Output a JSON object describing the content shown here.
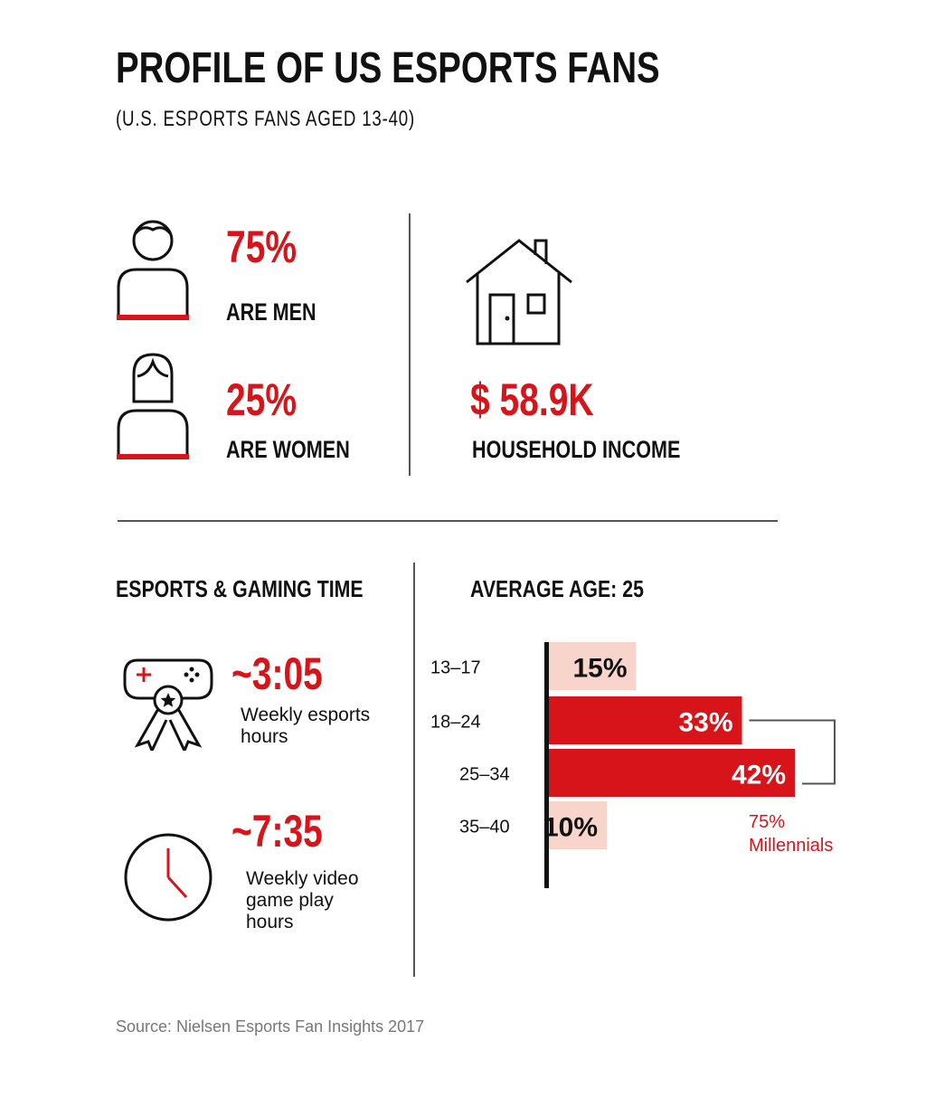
{
  "title": "PROFILE OF US ESPORTS FANS",
  "subtitle": "(U.S. ESPORTS FANS AGED 13-40)",
  "gender": {
    "men": {
      "value": "75%",
      "label": "ARE MEN"
    },
    "women": {
      "value": "25%",
      "label": "ARE WOMEN"
    }
  },
  "income": {
    "value": "$ 58.9K",
    "label": "HOUSEHOLD INCOME"
  },
  "gaming_time": {
    "heading": "ESPORTS & GAMING TIME",
    "esports": {
      "value": "~3:05",
      "label": "Weekly esports hours"
    },
    "video": {
      "value": "~7:35",
      "label": "Weekly video game play hours"
    }
  },
  "age": {
    "heading": "AVERAGE AGE: 25",
    "millennials_value": "75%",
    "millennials_label": "Millennials"
  },
  "colors": {
    "accent": "#d7141a",
    "light": "#f7d5cb",
    "text": "#111111"
  },
  "chart_data": {
    "type": "bar",
    "orientation": "horizontal",
    "categories": [
      "13–17",
      "18–24",
      "25–34",
      "35–40"
    ],
    "values": [
      15,
      33,
      42,
      10
    ],
    "labels": [
      "15%",
      "33%",
      "42%",
      "10%"
    ],
    "highlighted": [
      false,
      true,
      true,
      false
    ],
    "title": "AVERAGE AGE: 25",
    "xlabel": "",
    "ylabel": "",
    "annotation": "75% Millennials"
  },
  "source": "Source: Nielsen Esports Fan Insights 2017"
}
